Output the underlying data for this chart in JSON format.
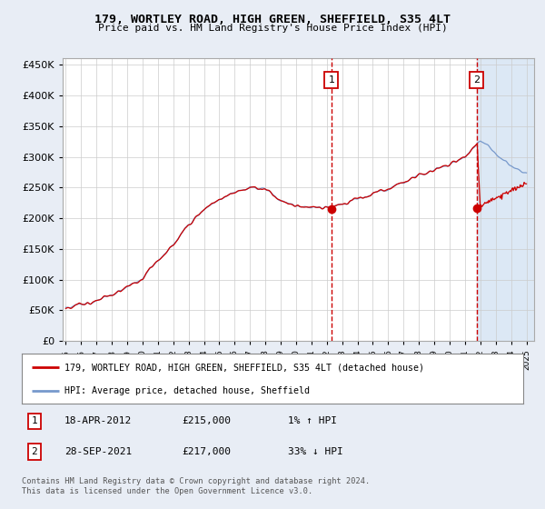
{
  "title": "179, WORTLEY ROAD, HIGH GREEN, SHEFFIELD, S35 4LT",
  "subtitle": "Price paid vs. HM Land Registry's House Price Index (HPI)",
  "ylim": [
    0,
    460000
  ],
  "yticks": [
    0,
    50000,
    100000,
    150000,
    200000,
    250000,
    300000,
    350000,
    400000,
    450000
  ],
  "xlim_start": 1994.8,
  "xlim_end": 2025.5,
  "background_color": "#e8edf5",
  "plot_bg_color": "#ffffff",
  "shade_color": "#dce8f5",
  "grid_color": "#cccccc",
  "hpi_color": "#7799cc",
  "price_color": "#cc0000",
  "ann1_x": 2012.3,
  "ann1_y": 215000,
  "ann2_x": 2021.75,
  "ann2_y": 217000,
  "legend_line1": "179, WORTLEY ROAD, HIGH GREEN, SHEFFIELD, S35 4LT (detached house)",
  "legend_line2": "HPI: Average price, detached house, Sheffield",
  "footer": "Contains HM Land Registry data © Crown copyright and database right 2024.\nThis data is licensed under the Open Government Licence v3.0.",
  "table_rows": [
    {
      "label": "1",
      "date": "18-APR-2012",
      "price": "£215,000",
      "hpi": "1% ↑ HPI"
    },
    {
      "label": "2",
      "date": "28-SEP-2021",
      "price": "£217,000",
      "hpi": "33% ↓ HPI"
    }
  ]
}
